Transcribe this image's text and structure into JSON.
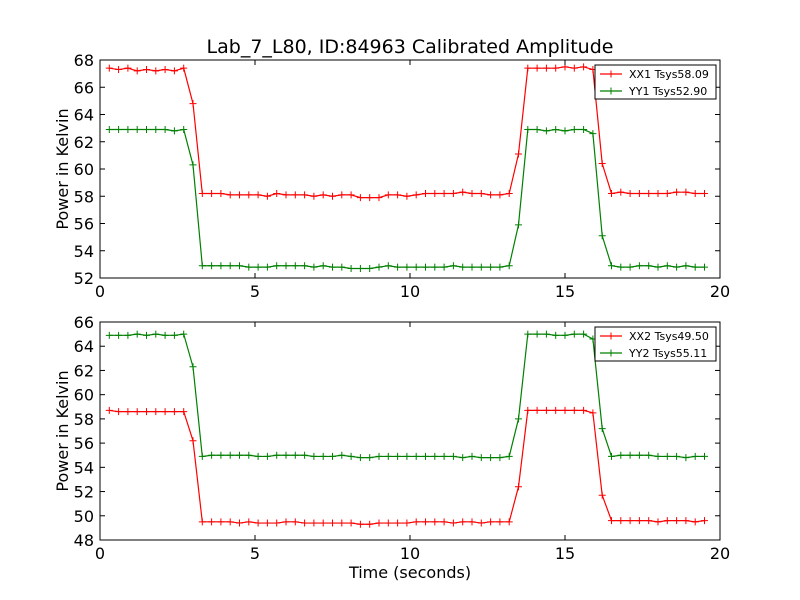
{
  "colors": {
    "xx": "#ff0000",
    "yy": "#008000",
    "axes": "#000000",
    "background": "#ffffff"
  },
  "chart_data": [
    {
      "type": "line",
      "title": "Lab_7_L80, ID:84963 Calibrated Amplitude",
      "xlabel": "",
      "ylabel": "Power in Kelvin",
      "xlim": [
        0,
        20
      ],
      "ylim": [
        52,
        68
      ],
      "xticks": [
        "0",
        "5",
        "10",
        "15",
        "20"
      ],
      "yticks": [
        "52",
        "54",
        "56",
        "58",
        "60",
        "62",
        "64",
        "66",
        "68"
      ],
      "legend": "top-right",
      "grid": false,
      "x": [
        0.3,
        0.6,
        0.9,
        1.2,
        1.5,
        1.8,
        2.1,
        2.4,
        2.7,
        3.0,
        3.3,
        3.6,
        3.9,
        4.2,
        4.5,
        4.8,
        5.1,
        5.4,
        5.7,
        6.0,
        6.3,
        6.6,
        6.9,
        7.2,
        7.5,
        7.8,
        8.1,
        8.4,
        8.7,
        9.0,
        9.3,
        9.6,
        9.9,
        10.2,
        10.5,
        10.8,
        11.1,
        11.4,
        11.7,
        12.0,
        12.3,
        12.6,
        12.9,
        13.2,
        13.5,
        13.8,
        14.1,
        14.4,
        14.7,
        15.0,
        15.3,
        15.6,
        15.9,
        16.2,
        16.5,
        16.8,
        17.1,
        17.4,
        17.7,
        18.0,
        18.3,
        18.6,
        18.9,
        19.2,
        19.5
      ],
      "series": [
        {
          "name": "XX1 Tsys58.09",
          "color": "#ff0000",
          "values": [
            67.4,
            67.3,
            67.4,
            67.2,
            67.3,
            67.2,
            67.3,
            67.2,
            67.4,
            64.8,
            58.2,
            58.2,
            58.2,
            58.1,
            58.1,
            58.1,
            58.1,
            58.0,
            58.2,
            58.1,
            58.1,
            58.1,
            58.0,
            58.1,
            58.0,
            58.1,
            58.1,
            57.9,
            57.9,
            57.9,
            58.1,
            58.1,
            58.0,
            58.1,
            58.2,
            58.2,
            58.2,
            58.2,
            58.3,
            58.2,
            58.2,
            58.1,
            58.1,
            58.2,
            61.1,
            67.4,
            67.4,
            67.4,
            67.4,
            67.5,
            67.4,
            67.5,
            67.3,
            60.4,
            58.2,
            58.3,
            58.2,
            58.2,
            58.2,
            58.2,
            58.2,
            58.3,
            58.3,
            58.2,
            58.2
          ]
        },
        {
          "name": "YY1 Tsys52.90",
          "color": "#008000",
          "values": [
            62.9,
            62.9,
            62.9,
            62.9,
            62.9,
            62.9,
            62.9,
            62.8,
            62.9,
            60.3,
            52.9,
            52.9,
            52.9,
            52.9,
            52.9,
            52.8,
            52.8,
            52.8,
            52.9,
            52.9,
            52.9,
            52.9,
            52.8,
            52.9,
            52.8,
            52.8,
            52.7,
            52.7,
            52.7,
            52.8,
            52.9,
            52.8,
            52.8,
            52.8,
            52.8,
            52.8,
            52.8,
            52.9,
            52.8,
            52.8,
            52.8,
            52.8,
            52.8,
            52.9,
            55.9,
            62.9,
            62.9,
            62.8,
            62.9,
            62.8,
            62.9,
            62.9,
            62.6,
            55.1,
            52.9,
            52.8,
            52.8,
            52.9,
            52.9,
            52.8,
            52.9,
            52.8,
            52.9,
            52.8,
            52.8
          ]
        }
      ]
    },
    {
      "type": "line",
      "title": "",
      "xlabel": "Time (seconds)",
      "ylabel": "Power in Kelvin",
      "xlim": [
        0,
        20
      ],
      "ylim": [
        48,
        66
      ],
      "xticks": [
        "0",
        "5",
        "10",
        "15",
        "20"
      ],
      "yticks": [
        "48",
        "50",
        "52",
        "54",
        "56",
        "58",
        "60",
        "62",
        "64",
        "66"
      ],
      "legend": "top-right",
      "grid": false,
      "x": [
        0.3,
        0.6,
        0.9,
        1.2,
        1.5,
        1.8,
        2.1,
        2.4,
        2.7,
        3.0,
        3.3,
        3.6,
        3.9,
        4.2,
        4.5,
        4.8,
        5.1,
        5.4,
        5.7,
        6.0,
        6.3,
        6.6,
        6.9,
        7.2,
        7.5,
        7.8,
        8.1,
        8.4,
        8.7,
        9.0,
        9.3,
        9.6,
        9.9,
        10.2,
        10.5,
        10.8,
        11.1,
        11.4,
        11.7,
        12.0,
        12.3,
        12.6,
        12.9,
        13.2,
        13.5,
        13.8,
        14.1,
        14.4,
        14.7,
        15.0,
        15.3,
        15.6,
        15.9,
        16.2,
        16.5,
        16.8,
        17.1,
        17.4,
        17.7,
        18.0,
        18.3,
        18.6,
        18.9,
        19.2,
        19.5
      ],
      "series": [
        {
          "name": "XX2 Tsys49.50",
          "color": "#ff0000",
          "values": [
            58.7,
            58.6,
            58.6,
            58.6,
            58.6,
            58.6,
            58.6,
            58.6,
            58.6,
            56.2,
            49.5,
            49.5,
            49.5,
            49.5,
            49.4,
            49.5,
            49.4,
            49.4,
            49.4,
            49.5,
            49.5,
            49.4,
            49.4,
            49.4,
            49.4,
            49.4,
            49.4,
            49.3,
            49.3,
            49.4,
            49.4,
            49.4,
            49.4,
            49.5,
            49.5,
            49.5,
            49.5,
            49.4,
            49.5,
            49.5,
            49.4,
            49.5,
            49.5,
            49.5,
            52.4,
            58.7,
            58.7,
            58.7,
            58.7,
            58.7,
            58.7,
            58.7,
            58.5,
            51.7,
            49.6,
            49.6,
            49.6,
            49.6,
            49.6,
            49.5,
            49.6,
            49.6,
            49.6,
            49.5,
            49.6
          ]
        },
        {
          "name": "YY2 Tsys55.11",
          "color": "#008000",
          "values": [
            64.9,
            64.9,
            64.9,
            65.0,
            64.9,
            65.0,
            64.9,
            64.9,
            65.0,
            62.3,
            54.9,
            55.0,
            55.0,
            55.0,
            55.0,
            55.0,
            54.9,
            54.9,
            55.0,
            55.0,
            55.0,
            55.0,
            54.9,
            54.9,
            54.9,
            55.0,
            54.9,
            54.8,
            54.8,
            54.9,
            54.9,
            54.9,
            54.9,
            54.9,
            54.9,
            54.9,
            54.9,
            54.9,
            54.8,
            54.9,
            54.8,
            54.8,
            54.8,
            54.9,
            58.0,
            65.0,
            65.0,
            65.0,
            64.9,
            64.9,
            65.0,
            65.0,
            64.6,
            57.2,
            54.9,
            55.0,
            55.0,
            55.0,
            55.0,
            54.9,
            54.9,
            54.9,
            54.8,
            54.9,
            54.9
          ]
        }
      ]
    }
  ]
}
